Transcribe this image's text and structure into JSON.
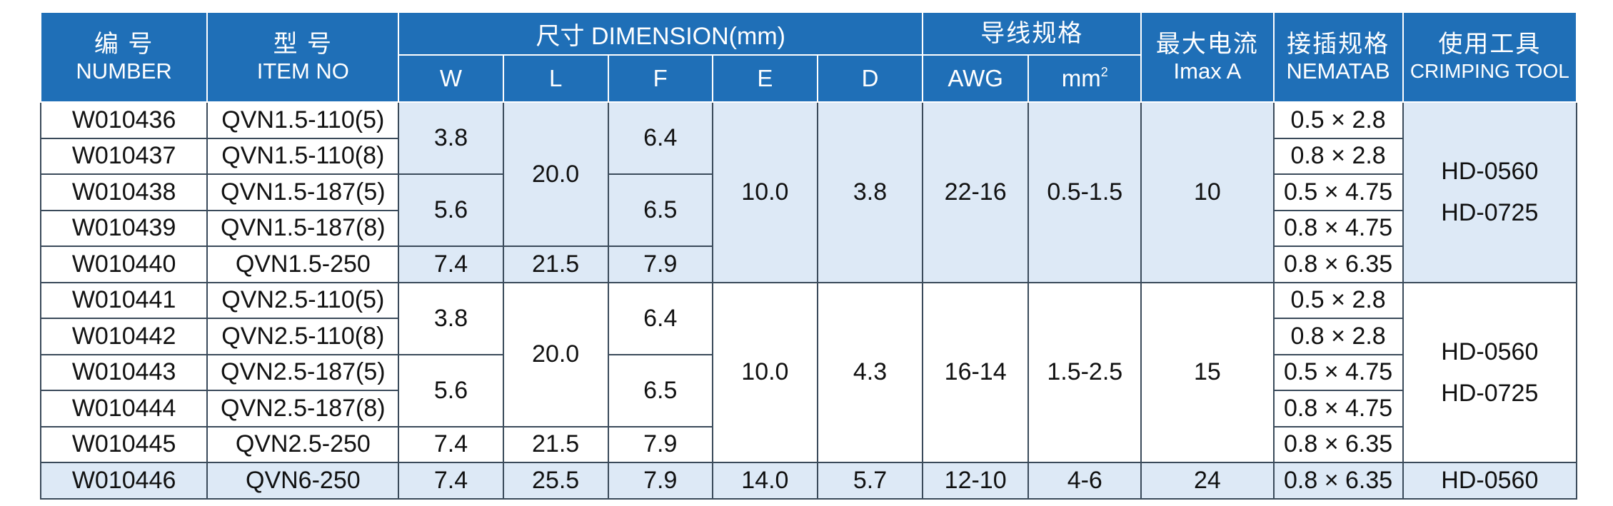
{
  "header": {
    "number_cn": "编 号",
    "number_en": "NUMBER",
    "item_cn": "型 号",
    "item_en": "ITEM NO",
    "dimension": "尺寸 DIMENSION(mm)",
    "w": "W",
    "l": "L",
    "f": "F",
    "e": "E",
    "d": "D",
    "wire_cn": "导线规格",
    "awg": "AWG",
    "mm2_base": "mm",
    "mm2_sup": "2",
    "current_cn": "最大电流",
    "current_en": "Imax  A",
    "connect_cn": "接插规格",
    "connect_en": "NEMATAB",
    "tool_cn": "使用工具",
    "tool_en": "CRIMPING TOOL"
  },
  "rows": [
    {
      "number": "W010436",
      "item": "QVN1.5-110(5)",
      "nematab": "0.5 × 2.8"
    },
    {
      "number": "W010437",
      "item": "QVN1.5-110(8)",
      "nematab": "0.8 × 2.8"
    },
    {
      "number": "W010438",
      "item": "QVN1.5-187(5)",
      "nematab": "0.5 × 4.75"
    },
    {
      "number": "W010439",
      "item": "QVN1.5-187(8)",
      "nematab": "0.8 × 4.75"
    },
    {
      "number": "W010440",
      "item": "QVN1.5-250",
      "nematab": "0.8 × 6.35"
    },
    {
      "number": "W010441",
      "item": "QVN2.5-110(5)",
      "nematab": "0.5 × 2.8"
    },
    {
      "number": "W010442",
      "item": "QVN2.5-110(8)",
      "nematab": "0.8 × 2.8"
    },
    {
      "number": "W010443",
      "item": "QVN2.5-187(5)",
      "nematab": "0.5 × 4.75"
    },
    {
      "number": "W010444",
      "item": "QVN2.5-187(8)",
      "nematab": "0.8 × 4.75"
    },
    {
      "number": "W010445",
      "item": "QVN2.5-250",
      "nematab": "0.8 × 6.35"
    },
    {
      "number": "W010446",
      "item": "QVN6-250",
      "nematab": "0.8 × 6.35"
    }
  ],
  "group1": {
    "w_a": "3.8",
    "w_b": "5.6",
    "w_c": "7.4",
    "l_a": "20.0",
    "l_b": "21.5",
    "f_a": "6.4",
    "f_b": "6.5",
    "f_c": "7.9",
    "e": "10.0",
    "d": "3.8",
    "awg": "22-16",
    "mm2": "0.5-1.5",
    "imax": "10",
    "tool_1": "HD-0560",
    "tool_2": "HD-0725"
  },
  "group2": {
    "w_a": "3.8",
    "w_b": "5.6",
    "w_c": "7.4",
    "l_a": "20.0",
    "l_b": "21.5",
    "f_a": "6.4",
    "f_b": "6.5",
    "f_c": "7.9",
    "e": "10.0",
    "d": "4.3",
    "awg": "16-14",
    "mm2": "1.5-2.5",
    "imax": "15",
    "tool_1": "HD-0560",
    "tool_2": "HD-0725"
  },
  "group3": {
    "w": "7.4",
    "l": "25.5",
    "f": "7.9",
    "e": "14.0",
    "d": "5.7",
    "awg": "12-10",
    "mm2": "4-6",
    "imax": "24",
    "tool": "HD-0560"
  }
}
